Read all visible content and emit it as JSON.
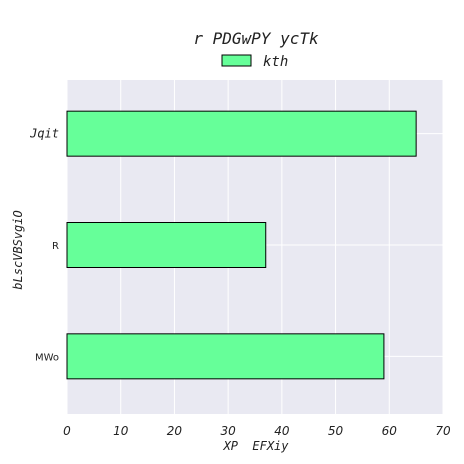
{
  "chart_data": {
    "type": "bar",
    "orientation": "horizontal",
    "title": "r PDGwPY ycTk",
    "xlabel": "XP  EFXiy",
    "ylabel": "bLscVBSvgiO",
    "categories": [
      "Jqit",
      "R",
      "MWo"
    ],
    "series": [
      {
        "name": "kth",
        "values": [
          65,
          37,
          59
        ]
      }
    ],
    "xlim": [
      0,
      70
    ],
    "xticks": [
      0,
      10,
      20,
      30,
      40,
      50,
      60,
      70
    ],
    "grid": true,
    "legend_position": "top-center",
    "colors": {
      "bar_fill": "#66ff99",
      "bar_edge": "#000000",
      "plot_background": "#e9e9f2",
      "grid": "#ffffff"
    }
  }
}
